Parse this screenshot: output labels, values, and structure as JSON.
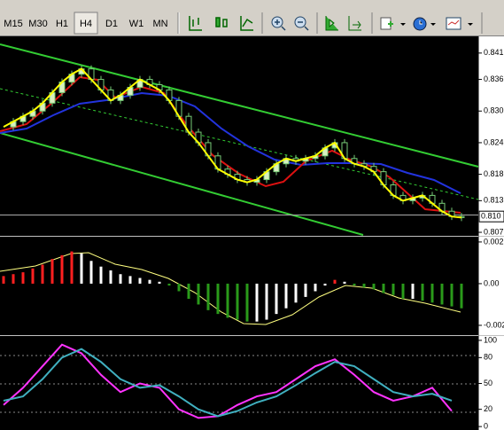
{
  "toolbar": {
    "timeframes": [
      "M15",
      "M30",
      "H1",
      "H4",
      "D1",
      "W1",
      "MN"
    ]
  },
  "chart_data": [
    {
      "type": "candlestick",
      "values": [
        0.827,
        0.828,
        0.829,
        0.83,
        0.8315,
        0.8335,
        0.8355,
        0.837,
        0.838,
        0.836,
        0.834,
        0.832,
        0.833,
        0.8345,
        0.836,
        0.835,
        0.834,
        0.832,
        0.829,
        0.826,
        0.824,
        0.8215,
        0.819,
        0.818,
        0.817,
        0.8165,
        0.817,
        0.8185,
        0.82,
        0.821,
        0.8205,
        0.821,
        0.8215,
        0.823,
        0.824,
        0.821,
        0.82,
        0.8195,
        0.8185,
        0.816,
        0.814,
        0.813,
        0.8135,
        0.814,
        0.8125,
        0.811,
        0.81,
        0.8098
      ],
      "ylim": [
        0.8065,
        0.844
      ],
      "yticks": [
        0.841,
        0.836,
        {
          "value": 0.83,
          "label": "0.830"
        },
        0.824,
        0.818,
        0.813,
        0.807
      ],
      "current_price": {
        "value": 0.81,
        "label": "0.810"
      }
    },
    {
      "type": "bar",
      "values": [
        0.0004,
        0.0005,
        0.0006,
        0.0008,
        0.001,
        0.0013,
        0.0015,
        0.0017,
        0.0016,
        0.0012,
        0.0009,
        0.0007,
        0.0005,
        0.0004,
        0.0003,
        0.0002,
        0.0001,
        -0.0001,
        -0.0004,
        -0.0008,
        -0.0011,
        -0.0014,
        -0.0016,
        -0.0018,
        -0.0019,
        -0.002,
        -0.002,
        -0.0019,
        -0.0016,
        -0.0013,
        -0.001,
        -0.0007,
        -0.0004,
        -0.0001,
        0.0002,
        0.0001,
        -0.0001,
        -0.0002,
        -0.0003,
        -0.0005,
        -0.0006,
        -0.0008,
        -0.0008,
        -0.0009,
        -0.001,
        -0.0011,
        -0.0012,
        -0.0013
      ],
      "ylim": [
        -0.00267,
        0.00243
      ],
      "yticks": [
        0.0022,
        {
          "value": 0,
          "label": "0.00"
        },
        -0.0022
      ]
    },
    {
      "type": "line",
      "series": [
        {
          "color": "#ff33ff",
          "values": [
            25,
            45,
            70,
            95,
            85,
            60,
            40,
            50,
            45,
            20,
            10,
            12,
            25,
            35,
            40,
            55,
            70,
            78,
            60,
            40,
            30,
            35,
            45,
            18
          ]
        },
        {
          "color": "#40b0c0",
          "values": [
            30,
            35,
            55,
            80,
            90,
            75,
            55,
            45,
            48,
            35,
            20,
            12,
            18,
            28,
            35,
            48,
            62,
            75,
            70,
            55,
            40,
            35,
            38,
            30
          ]
        }
      ],
      "ylim": [
        -4,
        104
      ],
      "yticks": [
        100,
        80,
        50,
        20,
        0
      ]
    }
  ]
}
